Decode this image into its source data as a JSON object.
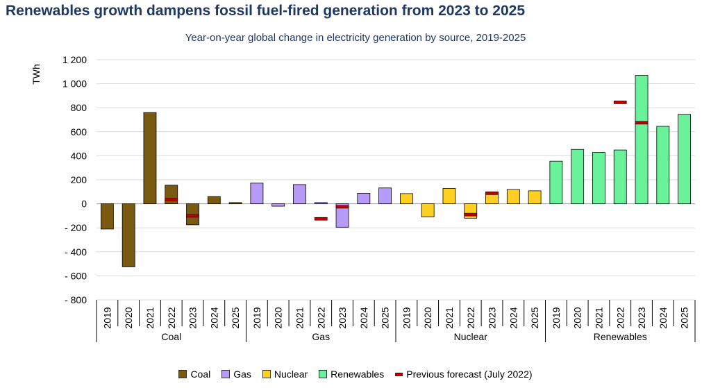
{
  "chart_data": {
    "type": "bar",
    "title": "Renewables growth dampens fossil fuel-fired generation from 2023 to 2025",
    "subtitle": "Year-on-year global change in electricity generation by source, 2019-2025",
    "ylabel": "TWh",
    "ylim": [
      -800,
      1200
    ],
    "yticks": [
      -800,
      -600,
      -400,
      -200,
      0,
      200,
      400,
      600,
      800,
      1000,
      1200
    ],
    "ytick_labels": [
      "- 800",
      "- 600",
      "- 400",
      "- 200",
      "0",
      "200",
      "400",
      "600",
      "800",
      "1 000",
      "1 200"
    ],
    "grid": true,
    "legend_position": "bottom",
    "years": [
      "2019",
      "2020",
      "2021",
      "2022",
      "2023",
      "2024",
      "2025"
    ],
    "series": [
      {
        "name": "Coal",
        "color": "#7a5a10",
        "values": [
          -210,
          -525,
          760,
          155,
          -175,
          60,
          10
        ]
      },
      {
        "name": "Gas",
        "color": "#b69cf6",
        "values": [
          172,
          -20,
          160,
          10,
          -195,
          88,
          132
        ]
      },
      {
        "name": "Nuclear",
        "color": "#ffd021",
        "values": [
          85,
          -110,
          128,
          -120,
          98,
          120,
          108
        ]
      },
      {
        "name": "Renewables",
        "color": "#6af29b",
        "values": [
          355,
          453,
          428,
          448,
          1070,
          645,
          745
        ]
      }
    ],
    "previous_forecast": {
      "name": "Previous forecast (July 2022)",
      "color": "#c00000",
      "points": [
        {
          "group": "Coal",
          "year": "2022",
          "value": 35
        },
        {
          "group": "Coal",
          "year": "2023",
          "value": -100
        },
        {
          "group": "Gas",
          "year": "2022",
          "value": -125
        },
        {
          "group": "Gas",
          "year": "2023",
          "value": -25
        },
        {
          "group": "Nuclear",
          "year": "2022",
          "value": -90
        },
        {
          "group": "Nuclear",
          "year": "2023",
          "value": 88
        },
        {
          "group": "Renewables",
          "year": "2022",
          "value": 845
        },
        {
          "group": "Renewables",
          "year": "2023",
          "value": 675
        }
      ]
    }
  }
}
